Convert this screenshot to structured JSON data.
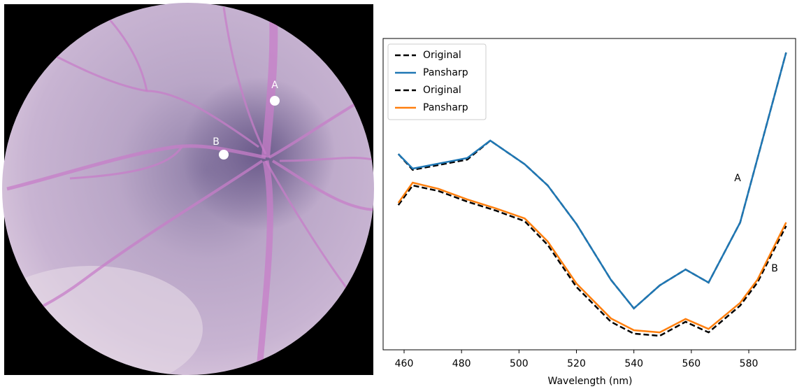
{
  "image_labels": [
    "A",
    "B"
  ],
  "chart_data": {
    "type": "line",
    "x_label": "Wavelength (nm)",
    "xlim": [
      452.7,
      596.3
    ],
    "xticks": [
      460,
      480,
      500,
      520,
      540,
      560,
      580
    ],
    "ylim": [
      0,
      100
    ],
    "legend": "upper left",
    "series": [
      {
        "name": "Original",
        "color": "#000000",
        "dashed": true,
        "x": [
          458,
          463,
          482,
          490,
          502,
          510,
          520,
          532,
          540,
          549,
          558,
          566,
          577,
          593
        ],
        "values": [
          62.9,
          57.8,
          61.1,
          67.2,
          59.6,
          52.8,
          40.4,
          22.5,
          13.3,
          20.7,
          25.8,
          21.6,
          40.9,
          95.5
        ]
      },
      {
        "name": "Pansharp",
        "color": "#1f77b4",
        "dashed": false,
        "x": [
          458,
          463,
          482,
          490,
          502,
          510,
          520,
          532,
          540,
          549,
          558,
          566,
          577,
          593
        ],
        "values": [
          62.9,
          58.2,
          61.6,
          67.2,
          59.6,
          52.8,
          40.4,
          22.5,
          13.3,
          20.7,
          25.8,
          21.6,
          40.9,
          95.5
        ]
      },
      {
        "name": "Original",
        "color": "#000000",
        "dashed": true,
        "x": [
          458,
          463,
          472,
          482,
          492,
          502,
          510,
          520,
          532,
          540,
          549,
          558,
          566,
          577,
          583,
          593
        ],
        "values": [
          46.5,
          52.8,
          51.0,
          47.6,
          44.7,
          41.3,
          33.7,
          20.2,
          9.0,
          5.2,
          4.5,
          9.0,
          5.6,
          14.2,
          21.6,
          39.8
        ]
      },
      {
        "name": "Pansharp",
        "color": "#ff7f0e",
        "dashed": false,
        "x": [
          458,
          463,
          472,
          482,
          492,
          502,
          510,
          520,
          532,
          540,
          549,
          558,
          566,
          577,
          583,
          593
        ],
        "values": [
          47.2,
          53.7,
          51.7,
          48.3,
          45.4,
          42.2,
          34.8,
          21.3,
          10.1,
          6.3,
          5.6,
          9.9,
          6.7,
          15.1,
          22.5,
          40.9
        ]
      }
    ],
    "annotations": [
      {
        "text": "A",
        "x": 576.1,
        "y": 55.1
      },
      {
        "text": "B",
        "x": 589,
        "y": 26.1
      }
    ]
  }
}
